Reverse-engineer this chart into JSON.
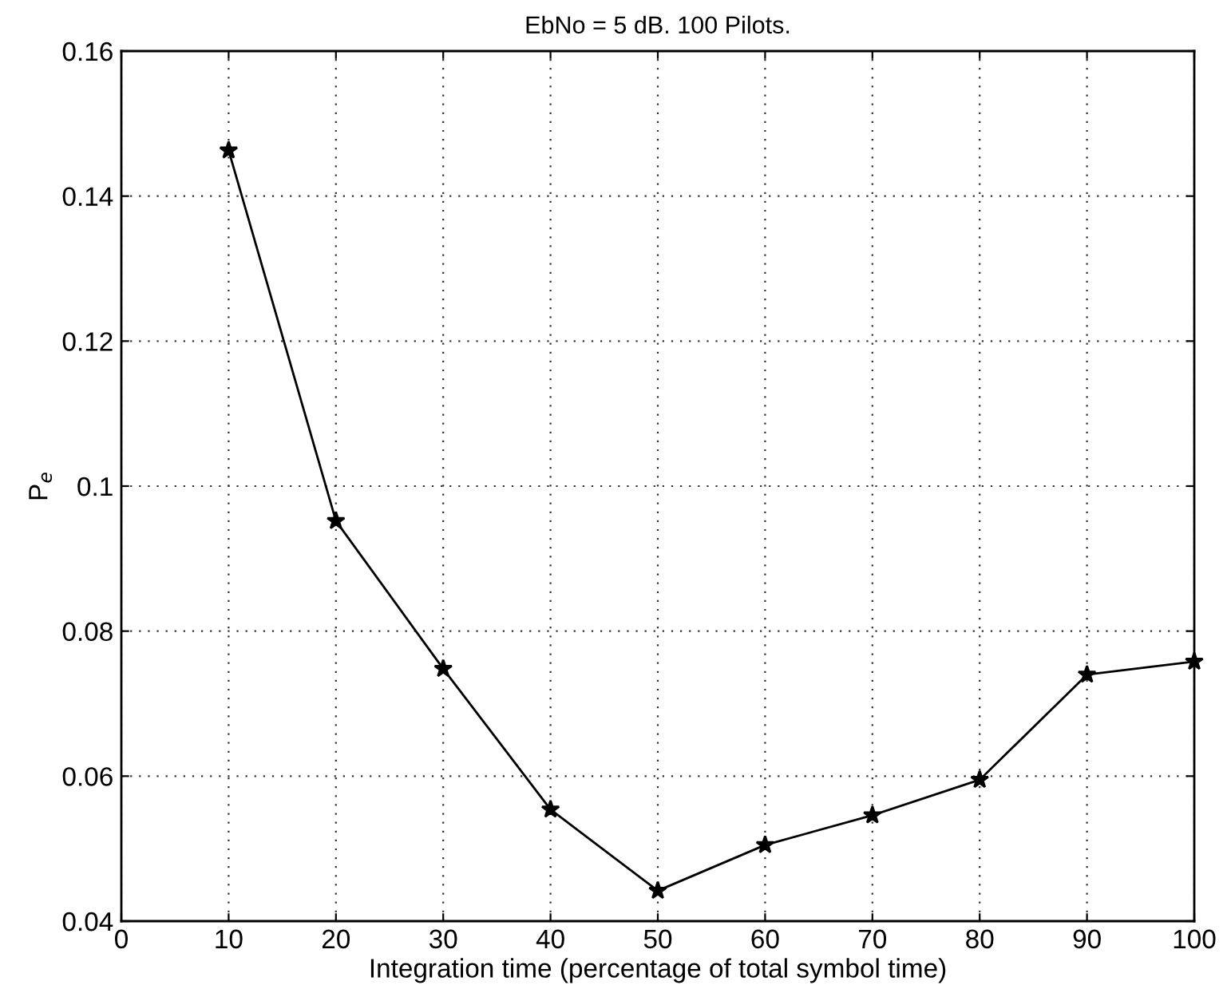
{
  "chart_data": {
    "type": "line",
    "title": "EbNo = 5 dB. 100 Pilots.",
    "xlabel": "Integration time (percentage of total symbol time)",
    "ylabel": "P$_{e}$",
    "x": [
      10,
      20,
      30,
      40,
      50,
      60,
      70,
      80,
      90,
      100
    ],
    "series": [
      {
        "color": "#000000",
        "values": [
          0.1463,
          0.0952,
          0.0748,
          0.0554,
          0.0442,
          0.0505,
          0.0546,
          0.0595,
          0.074,
          0.0758
        ]
      }
    ],
    "xlim": [
      0,
      100
    ],
    "xticks": [
      0,
      10,
      20,
      30,
      40,
      50,
      60,
      70,
      80,
      90,
      100
    ],
    "ylim": [
      0.04,
      0.16
    ],
    "yticks": [
      {
        "value": 0.04,
        "label": "0.04"
      },
      {
        "value": 0.06,
        "label": "0.06"
      },
      {
        "value": 0.08,
        "label": "0.08"
      },
      {
        "value": 0.1,
        "label": "0.1"
      },
      {
        "value": 0.12,
        "label": "0.12"
      },
      {
        "value": 0.14,
        "label": "0.14"
      },
      {
        "value": 0.16,
        "label": "0.16"
      }
    ],
    "grid": true,
    "marker": "star",
    "line_style": "solid"
  }
}
